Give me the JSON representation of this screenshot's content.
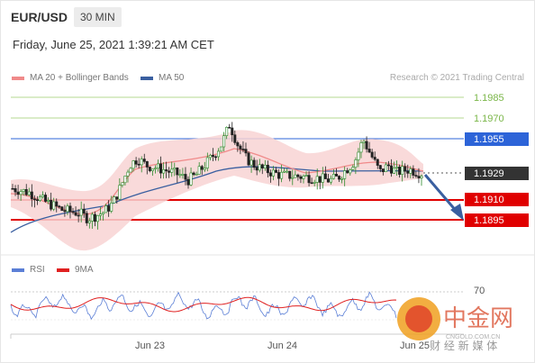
{
  "header": {
    "pair": "EUR/USD",
    "timeframe": "30 MIN"
  },
  "datetime": "Friday, June 25, 2021 1:39:21 AM CET",
  "legend": {
    "ma20": {
      "label": "MA 20 + Bollinger Bands",
      "color": "#f08a8a"
    },
    "ma50": {
      "label": "MA 50",
      "color": "#3a5fa0"
    },
    "copyright": "Research © 2021 Trading Central"
  },
  "rsi_legend": {
    "rsi": {
      "label": "RSI",
      "color": "#5b7fd6"
    },
    "ma9": {
      "label": "9MA",
      "color": "#e02020"
    }
  },
  "levels": [
    {
      "value": "1.1985",
      "kind": "green"
    },
    {
      "value": "1.1970",
      "kind": "green"
    },
    {
      "value": "1.1955",
      "kind": "blue"
    },
    {
      "value": "1.1929",
      "kind": "current"
    },
    {
      "value": "1.1910",
      "kind": "red"
    },
    {
      "value": "1.1895",
      "kind": "red"
    }
  ],
  "rsi_level": "70",
  "x_ticks": [
    "Jun 23",
    "Jun 24",
    "Jun 25"
  ],
  "watermark": {
    "brand": "中金网",
    "site": "CNGOLD.COM.CN",
    "tagline": "财 经 新 媒 体"
  },
  "colors": {
    "green": "#7ab648",
    "blue": "#2d64d8",
    "red": "#e00000",
    "current": "#333333",
    "up": "#2a8a2a",
    "down": "#222222",
    "band": "#f8d4d4",
    "ma20": "#f08a8a",
    "ma50": "#3a5fa0"
  },
  "chart_data": {
    "type": "candlestick",
    "price_axis": {
      "min": 1.188,
      "max": 1.1995
    },
    "close_path_points": [
      [
        0,
        1.1918
      ],
      [
        4,
        1.1915
      ],
      [
        8,
        1.1908
      ],
      [
        12,
        1.1902
      ],
      [
        16,
        1.19
      ],
      [
        18,
        1.1896
      ],
      [
        20,
        1.1898
      ],
      [
        22,
        1.1901
      ],
      [
        24,
        1.1907
      ],
      [
        26,
        1.192
      ],
      [
        28,
        1.1935
      ],
      [
        30,
        1.194
      ],
      [
        32,
        1.1935
      ],
      [
        36,
        1.1932
      ],
      [
        40,
        1.1928
      ],
      [
        42,
        1.1924
      ],
      [
        44,
        1.1928
      ],
      [
        46,
        1.1935
      ],
      [
        48,
        1.1942
      ],
      [
        50,
        1.195
      ],
      [
        52,
        1.1965
      ],
      [
        54,
        1.195
      ],
      [
        56,
        1.194
      ],
      [
        58,
        1.1935
      ],
      [
        60,
        1.1932
      ],
      [
        64,
        1.1928
      ],
      [
        68,
        1.1927
      ],
      [
        72,
        1.1926
      ],
      [
        76,
        1.1924
      ],
      [
        78,
        1.1926
      ],
      [
        80,
        1.1932
      ],
      [
        82,
        1.1938
      ],
      [
        84,
        1.1954
      ],
      [
        86,
        1.1942
      ],
      [
        88,
        1.193
      ],
      [
        90,
        1.1935
      ],
      [
        92,
        1.193
      ],
      [
        95,
        1.1932
      ],
      [
        98,
        1.1929
      ]
    ],
    "levels": [
      1.1985,
      1.197,
      1.1955,
      1.1929,
      1.191,
      1.1895
    ],
    "forecast": {
      "from": 1.1929,
      "to": 1.1895
    },
    "rsi_overbought": 70,
    "x_ticks": [
      "Jun 23",
      "Jun 24",
      "Jun 25"
    ]
  }
}
